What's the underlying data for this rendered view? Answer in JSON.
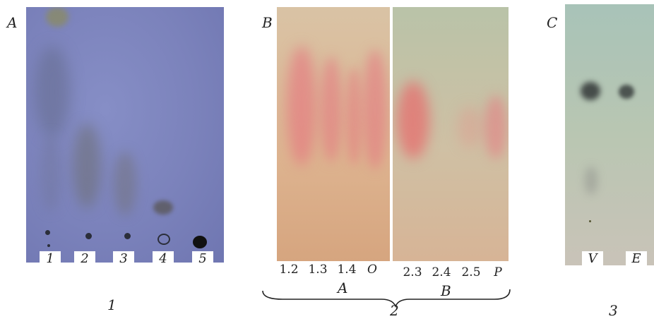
{
  "panels": {
    "a": {
      "letter": "A",
      "lanes": [
        "1",
        "2",
        "3",
        "4",
        "5"
      ],
      "caption": "1"
    },
    "b": {
      "letter": "B",
      "lanes_left": [
        "1.2",
        "1.3",
        "1.4",
        "O"
      ],
      "lanes_right": [
        "2.3",
        "2.4",
        "2.5",
        "P"
      ],
      "group_left": "A",
      "group_right": "B",
      "caption": "2"
    },
    "c": {
      "letter": "C",
      "lanes": [
        "V",
        "E"
      ],
      "caption": "3"
    }
  },
  "colors": {
    "plate_a": "#7f86bf",
    "plate_b_left": "#dcb595",
    "plate_b_right": "#c8c4a4",
    "plate_c": "#b9c6b2",
    "spot_pink": "#e5868c",
    "spot_dark": "#3a3d40"
  }
}
